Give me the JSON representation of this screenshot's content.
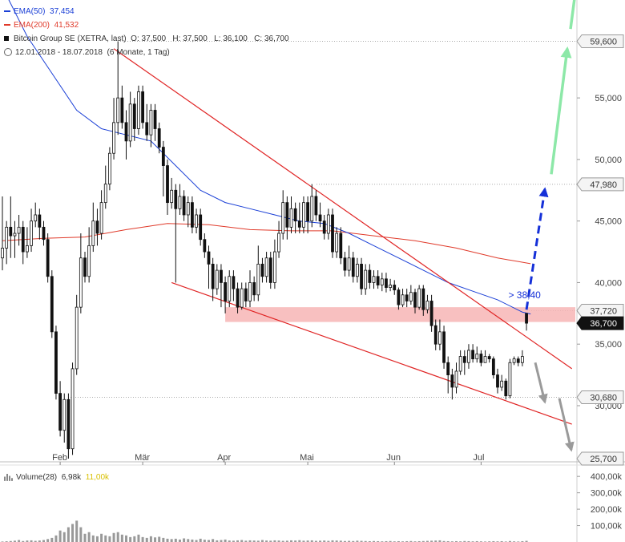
{
  "legend": {
    "ema50_label": "EMA(50)",
    "ema50_value": "37,454",
    "ema200_label": "EMA(200)",
    "ema200_value": "41,532",
    "instrument": "Bitcoin Group SE (XETRA, last)",
    "ohlc": "O: 37,500   H: 37,500   L: 36,100   C: 36,700",
    "period": "12.01.2018 - 18.07.2018",
    "period_detail": "(6 Monate, 1 Tag)"
  },
  "volume_legend": {
    "label": "Volume(28)",
    "value1": "6,98k",
    "value2": "11,00k"
  },
  "colors": {
    "ema50": "#1a3fd6",
    "ema200": "#e03a2a",
    "channel": "#e02525",
    "zone": "#f7b5b5",
    "up_arrow": "#1530d8",
    "green_arrow": "#8de8a8",
    "grey_arrow": "#9a9a9a",
    "candle": "#111111",
    "volume": "#999999"
  },
  "chart_data": {
    "type": "candlestick",
    "y_axis": {
      "range": [
        25.7,
        61.0
      ],
      "ticks": [
        30,
        35,
        40,
        45,
        50,
        55
      ],
      "tick_labels": [
        "30,000",
        "35,000",
        "40,000",
        "45,000",
        "50,000",
        "55,000"
      ],
      "marked_levels": [
        {
          "value": 59.6,
          "label": "59,600",
          "style": "gray"
        },
        {
          "value": 47.98,
          "label": "47,980",
          "style": "gray"
        },
        {
          "value": 37.72,
          "label": "37,720",
          "style": "gray"
        },
        {
          "value": 36.7,
          "label": "36,700",
          "style": "black"
        },
        {
          "value": 30.68,
          "label": "30,680",
          "style": "gray"
        },
        {
          "value": 25.7,
          "label": "25,700",
          "style": "gray"
        }
      ]
    },
    "x_axis": {
      "months": [
        {
          "label": "Feb",
          "day": 14
        },
        {
          "label": "Mär",
          "day": 34
        },
        {
          "label": "Apr",
          "day": 54
        },
        {
          "label": "Mai",
          "day": 74
        },
        {
          "label": "Jun",
          "day": 95
        },
        {
          "label": "Jul",
          "day": 116
        }
      ]
    },
    "resistance_zone": {
      "low": 36.8,
      "high": 38.0,
      "from_day": 54
    },
    "annotation": {
      "text": "> 38,40",
      "value": 39.0,
      "day": 123
    },
    "upper_trendline": {
      "from": {
        "day": 27,
        "value": 59.0
      },
      "to": {
        "day": 138,
        "value": 33.0
      }
    },
    "lower_trendline": {
      "from": {
        "day": 41,
        "value": 40.0
      },
      "to": {
        "day": 138,
        "value": 28.5
      }
    },
    "ema50": [
      [
        0,
        64.0
      ],
      [
        6,
        60.0
      ],
      [
        12,
        57.0
      ],
      [
        18,
        54.0
      ],
      [
        24,
        52.5
      ],
      [
        30,
        52.0
      ],
      [
        36,
        51.5
      ],
      [
        42,
        49.5
      ],
      [
        48,
        47.5
      ],
      [
        54,
        46.5
      ],
      [
        60,
        46.0
      ],
      [
        66,
        45.5
      ],
      [
        72,
        45.0
      ],
      [
        78,
        44.8
      ],
      [
        84,
        44.0
      ],
      [
        90,
        43.0
      ],
      [
        96,
        42.0
      ],
      [
        102,
        41.0
      ],
      [
        108,
        40.0
      ],
      [
        114,
        39.3
      ],
      [
        120,
        38.6
      ],
      [
        126,
        37.6
      ],
      [
        128,
        37.45
      ]
    ],
    "ema200": [
      [
        0,
        43.4
      ],
      [
        10,
        43.6
      ],
      [
        20,
        43.7
      ],
      [
        30,
        44.3
      ],
      [
        40,
        44.8
      ],
      [
        50,
        44.7
      ],
      [
        60,
        44.3
      ],
      [
        70,
        44.2
      ],
      [
        80,
        44.2
      ],
      [
        90,
        43.8
      ],
      [
        100,
        43.4
      ],
      [
        110,
        42.8
      ],
      [
        120,
        42.0
      ],
      [
        128,
        41.53
      ]
    ],
    "candles": [
      [
        42.0,
        42.8,
        47.0,
        41.0
      ],
      [
        42.8,
        44.5,
        45.0,
        41.5
      ],
      [
        44.5,
        43.8,
        47.0,
        42.0
      ],
      [
        43.8,
        44.0,
        45.0,
        42.0
      ],
      [
        44.0,
        44.5,
        45.5,
        43.0
      ],
      [
        44.5,
        42.5,
        45.0,
        41.5
      ],
      [
        42.5,
        43.0,
        44.5,
        42.0
      ],
      [
        43.0,
        45.0,
        46.0,
        42.5
      ],
      [
        45.0,
        45.5,
        46.5,
        44.5
      ],
      [
        45.5,
        44.5,
        46.0,
        43.5
      ],
      [
        44.5,
        43.5,
        45.0,
        43.0
      ],
      [
        43.5,
        40.5,
        44.0,
        40.0
      ],
      [
        40.5,
        36.0,
        41.0,
        35.5
      ],
      [
        36.0,
        31.0,
        36.5,
        30.5
      ],
      [
        31.0,
        28.0,
        32.0,
        27.5
      ],
      [
        28.0,
        30.5,
        31.0,
        27.0
      ],
      [
        30.5,
        26.5,
        31.0,
        25.7
      ],
      [
        26.5,
        33.0,
        33.5,
        26.0
      ],
      [
        33.0,
        38.0,
        39.0,
        32.5
      ],
      [
        38.0,
        42.0,
        44.0,
        37.5
      ],
      [
        42.0,
        40.5,
        42.5,
        40.0
      ],
      [
        40.5,
        43.0,
        44.5,
        40.0
      ],
      [
        43.0,
        45.0,
        46.5,
        42.5
      ],
      [
        45.0,
        44.0,
        46.0,
        43.0
      ],
      [
        44.0,
        46.5,
        47.5,
        43.5
      ],
      [
        46.5,
        48.0,
        49.5,
        46.0
      ],
      [
        48.0,
        50.5,
        51.0,
        47.5
      ],
      [
        50.5,
        53.0,
        55.0,
        50.0
      ],
      [
        53.0,
        55.0,
        59.6,
        52.0
      ],
      [
        55.0,
        53.0,
        56.0,
        52.5
      ],
      [
        53.0,
        51.5,
        54.0,
        50.0
      ],
      [
        51.5,
        54.5,
        55.5,
        51.0
      ],
      [
        54.5,
        52.5,
        55.0,
        51.5
      ],
      [
        52.5,
        55.5,
        56.0,
        52.0
      ],
      [
        55.5,
        53.0,
        56.0,
        52.5
      ],
      [
        53.0,
        52.0,
        54.5,
        51.5
      ],
      [
        52.0,
        54.0,
        54.5,
        51.0
      ],
      [
        54.0,
        52.5,
        54.5,
        51.5
      ],
      [
        52.5,
        51.0,
        53.0,
        50.5
      ],
      [
        51.0,
        49.5,
        51.5,
        47.0
      ],
      [
        49.5,
        46.5,
        50.0,
        45.5
      ],
      [
        46.5,
        47.5,
        48.5,
        46.0
      ],
      [
        47.5,
        46.0,
        48.0,
        40.0
      ],
      [
        46.0,
        47.0,
        48.0,
        45.5
      ],
      [
        47.0,
        45.5,
        47.5,
        45.0
      ],
      [
        45.5,
        46.5,
        47.0,
        44.5
      ],
      [
        46.5,
        44.5,
        47.0,
        44.0
      ],
      [
        44.5,
        45.5,
        46.0,
        44.0
      ],
      [
        45.5,
        43.5,
        46.0,
        43.0
      ],
      [
        43.5,
        42.5,
        44.0,
        42.0
      ],
      [
        42.5,
        41.5,
        43.0,
        39.5
      ],
      [
        41.5,
        39.5,
        42.0,
        38.5
      ],
      [
        39.5,
        41.0,
        41.5,
        39.0
      ],
      [
        41.0,
        40.0,
        41.5,
        38.0
      ],
      [
        40.0,
        38.5,
        40.5,
        37.5
      ],
      [
        38.5,
        40.5,
        41.0,
        38.0
      ],
      [
        40.5,
        39.5,
        41.0,
        38.5
      ],
      [
        39.5,
        38.0,
        40.0,
        37.5
      ],
      [
        38.0,
        39.5,
        40.0,
        37.8
      ],
      [
        39.5,
        38.5,
        40.0,
        38.0
      ],
      [
        38.5,
        40.0,
        41.0,
        38.0
      ],
      [
        40.0,
        39.0,
        40.5,
        38.5
      ],
      [
        39.0,
        41.5,
        43.0,
        38.5
      ],
      [
        41.5,
        40.5,
        42.0,
        40.0
      ],
      [
        40.5,
        42.0,
        42.5,
        40.0
      ],
      [
        42.0,
        40.0,
        42.5,
        39.5
      ],
      [
        40.0,
        42.5,
        43.5,
        39.5
      ],
      [
        42.5,
        44.0,
        45.0,
        42.0
      ],
      [
        44.0,
        46.5,
        47.5,
        43.5
      ],
      [
        46.5,
        44.5,
        47.0,
        43.5
      ],
      [
        44.5,
        46.0,
        47.0,
        44.0
      ],
      [
        46.0,
        45.0,
        46.5,
        44.0
      ],
      [
        45.0,
        44.5,
        46.5,
        44.0
      ],
      [
        44.5,
        46.5,
        47.0,
        44.0
      ],
      [
        46.5,
        45.0,
        47.0,
        44.0
      ],
      [
        45.0,
        47.0,
        48.0,
        44.5
      ],
      [
        47.0,
        45.5,
        47.5,
        45.0
      ],
      [
        45.5,
        45.0,
        46.5,
        44.5
      ],
      [
        45.0,
        44.0,
        45.5,
        43.5
      ],
      [
        44.0,
        45.5,
        46.0,
        43.5
      ],
      [
        45.5,
        42.5,
        46.0,
        42.0
      ],
      [
        42.5,
        44.0,
        44.5,
        42.0
      ],
      [
        44.0,
        42.0,
        44.5,
        41.5
      ],
      [
        42.0,
        41.0,
        42.5,
        40.5
      ],
      [
        41.0,
        42.0,
        43.0,
        40.5
      ],
      [
        42.0,
        40.5,
        42.5,
        40.0
      ],
      [
        40.5,
        41.5,
        42.0,
        40.0
      ],
      [
        41.5,
        39.5,
        42.0,
        39.0
      ],
      [
        39.5,
        41.0,
        41.5,
        39.0
      ],
      [
        41.0,
        40.0,
        41.5,
        39.5
      ],
      [
        40.0,
        40.5,
        41.0,
        39.5
      ],
      [
        40.5,
        39.8,
        41.0,
        39.5
      ],
      [
        39.8,
        40.3,
        40.8,
        39.3
      ],
      [
        40.3,
        39.6,
        40.8,
        39.2
      ],
      [
        39.6,
        39.8,
        40.3,
        39.3
      ],
      [
        39.8,
        39.4,
        40.2,
        39.0
      ],
      [
        39.4,
        38.2,
        39.6,
        37.8
      ],
      [
        38.2,
        39.0,
        39.5,
        38.0
      ],
      [
        39.0,
        38.5,
        39.5,
        38.0
      ],
      [
        38.5,
        39.2,
        39.8,
        38.2
      ],
      [
        39.2,
        38.0,
        39.5,
        37.5
      ],
      [
        38.0,
        39.5,
        39.8,
        37.8
      ],
      [
        39.5,
        37.8,
        39.8,
        37.3
      ],
      [
        37.8,
        38.5,
        39.0,
        37.5
      ],
      [
        38.5,
        36.5,
        39.0,
        36.0
      ],
      [
        36.5,
        35.0,
        37.0,
        34.5
      ],
      [
        35.0,
        36.0,
        37.0,
        34.5
      ],
      [
        36.0,
        33.5,
        36.5,
        33.0
      ],
      [
        33.5,
        32.5,
        34.0,
        31.0
      ],
      [
        32.5,
        31.5,
        33.0,
        30.5
      ],
      [
        31.5,
        32.8,
        33.5,
        31.0
      ],
      [
        32.8,
        34.0,
        34.5,
        32.5
      ],
      [
        34.0,
        33.5,
        34.5,
        32.5
      ],
      [
        33.5,
        34.5,
        35.0,
        33.0
      ],
      [
        34.5,
        33.8,
        35.0,
        33.5
      ],
      [
        33.8,
        34.2,
        34.8,
        33.5
      ],
      [
        34.2,
        33.5,
        34.5,
        33.2
      ],
      [
        33.5,
        34.0,
        34.5,
        33.5
      ],
      [
        34.0,
        33.8,
        34.2,
        33.5
      ],
      [
        33.8,
        32.5,
        34.0,
        32.2
      ],
      [
        32.5,
        31.5,
        33.0,
        31.0
      ],
      [
        31.5,
        32.0,
        32.5,
        31.2
      ],
      [
        32.0,
        30.8,
        32.2,
        30.5
      ],
      [
        30.8,
        33.5,
        33.8,
        30.6
      ],
      [
        33.5,
        33.8,
        34.0,
        33.3
      ],
      [
        33.8,
        33.5,
        34.0,
        33.2
      ],
      [
        33.5,
        34.0,
        34.5,
        33.2
      ],
      [
        37.5,
        36.7,
        37.5,
        36.1
      ]
    ],
    "volume": {
      "y_ticks": [
        100000,
        200000,
        300000,
        400000
      ],
      "y_tick_labels": [
        "100,00k",
        "200,00k",
        "300,00k",
        "400,00k"
      ],
      "bars": [
        3000,
        4500,
        6000,
        8000,
        12000,
        6000,
        9000,
        10000,
        7000,
        9000,
        12000,
        18000,
        25000,
        40000,
        70000,
        60000,
        90000,
        110000,
        130000,
        90000,
        50000,
        60000,
        40000,
        35000,
        50000,
        40000,
        35000,
        55000,
        60000,
        45000,
        40000,
        30000,
        35000,
        45000,
        30000,
        25000,
        35000,
        28000,
        32000,
        25000,
        20000,
        18000,
        20000,
        15000,
        22000,
        18000,
        15000,
        12000,
        20000,
        14000,
        12000,
        18000,
        10000,
        12000,
        15000,
        9000,
        8000,
        10000,
        12000,
        8000,
        10000,
        9000,
        8000,
        12000,
        9000,
        8000,
        10000,
        9000,
        7000,
        8000,
        10000,
        9000,
        11000,
        8000,
        9000,
        10000,
        7000,
        8000,
        9000,
        7000,
        10000,
        9000,
        8000,
        6000,
        7000,
        6000,
        8000,
        7000,
        6000,
        5000,
        6000,
        5000,
        4000,
        5000,
        6000,
        4000,
        5000,
        4000,
        5000,
        6000,
        4000,
        5000,
        6000,
        7000,
        8000,
        9000,
        10000,
        6000,
        5000,
        4000,
        5000,
        4000,
        6000,
        5000,
        4000,
        5000,
        4000,
        3000,
        4000,
        5000,
        4000,
        5000,
        3000,
        6000,
        4000,
        3000,
        5000,
        7000
      ]
    }
  }
}
